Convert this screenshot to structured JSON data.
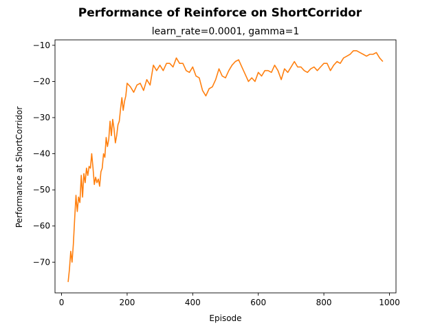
{
  "chart_data": {
    "type": "line",
    "title": "Performance of Reinforce on ShortCorridor",
    "subtitle": "learn_rate=0.0001, gamma=1",
    "xlabel": "Episode",
    "ylabel": "Performance at ShortCorridor",
    "xlim": [
      -20,
      1020
    ],
    "ylim": [
      -78.5,
      -8.5
    ],
    "xticks": [
      0,
      200,
      400,
      600,
      800,
      1000
    ],
    "yticks": [
      -70,
      -60,
      -50,
      -40,
      -30,
      -20,
      -10
    ],
    "grid": false,
    "legend": "none",
    "series": [
      {
        "color": "#ff7f0e",
        "x": [
          20,
          24,
          28,
          32,
          36,
          40,
          44,
          48,
          52,
          56,
          60,
          64,
          68,
          72,
          76,
          80,
          84,
          88,
          92,
          96,
          100,
          104,
          108,
          112,
          116,
          120,
          124,
          128,
          132,
          136,
          140,
          144,
          148,
          152,
          156,
          160,
          164,
          168,
          172,
          176,
          180,
          184,
          188,
          192,
          196,
          200,
          210,
          220,
          230,
          240,
          250,
          260,
          270,
          280,
          290,
          300,
          310,
          320,
          330,
          340,
          350,
          360,
          370,
          380,
          390,
          400,
          410,
          420,
          430,
          440,
          450,
          460,
          470,
          480,
          490,
          500,
          510,
          520,
          530,
          540,
          550,
          560,
          570,
          580,
          590,
          600,
          610,
          620,
          630,
          640,
          650,
          660,
          670,
          680,
          690,
          700,
          710,
          720,
          730,
          740,
          750,
          760,
          770,
          780,
          790,
          800,
          810,
          820,
          830,
          840,
          850,
          860,
          870,
          880,
          890,
          900,
          910,
          920,
          930,
          940,
          950,
          960,
          970,
          980
        ],
        "y": [
          -75.5,
          -72,
          -67,
          -70,
          -65,
          -58,
          -51.5,
          -56,
          -52,
          -53.5,
          -46,
          -52,
          -45.5,
          -48,
          -44,
          -46,
          -43.5,
          -44,
          -40,
          -44,
          -48.5,
          -46.5,
          -48,
          -47,
          -49,
          -45,
          -44,
          -40,
          -41,
          -35.5,
          -38,
          -36,
          -31,
          -35,
          -30.5,
          -33,
          -37,
          -35,
          -32,
          -31,
          -27.5,
          -24.5,
          -28,
          -25.5,
          -24,
          -20.5,
          -21.5,
          -23,
          -21,
          -20.5,
          -22.5,
          -19.5,
          -21,
          -15.5,
          -17,
          -15.5,
          -17,
          -15,
          -15,
          -16,
          -13.5,
          -15,
          -15,
          -17,
          -17.5,
          -16,
          -18.5,
          -19,
          -22.5,
          -24,
          -22,
          -21.5,
          -19.5,
          -16.5,
          -18.5,
          -19,
          -17,
          -15.5,
          -14.5,
          -14,
          -16,
          -18,
          -20,
          -19,
          -20,
          -17.5,
          -18.5,
          -17,
          -17,
          -17.5,
          -15.5,
          -17,
          -19.5,
          -16.5,
          -17.5,
          -16,
          -14.5,
          -16,
          -16,
          -17,
          -17.5,
          -16.5,
          -16,
          -17,
          -16,
          -15,
          -15,
          -17,
          -15.5,
          -14.5,
          -15,
          -13.5,
          -13,
          -12.5,
          -11.5,
          -11.5,
          -12,
          -12.5,
          -13,
          -12.5,
          -12.5,
          -12,
          -13.5,
          -14.5
        ]
      }
    ]
  }
}
